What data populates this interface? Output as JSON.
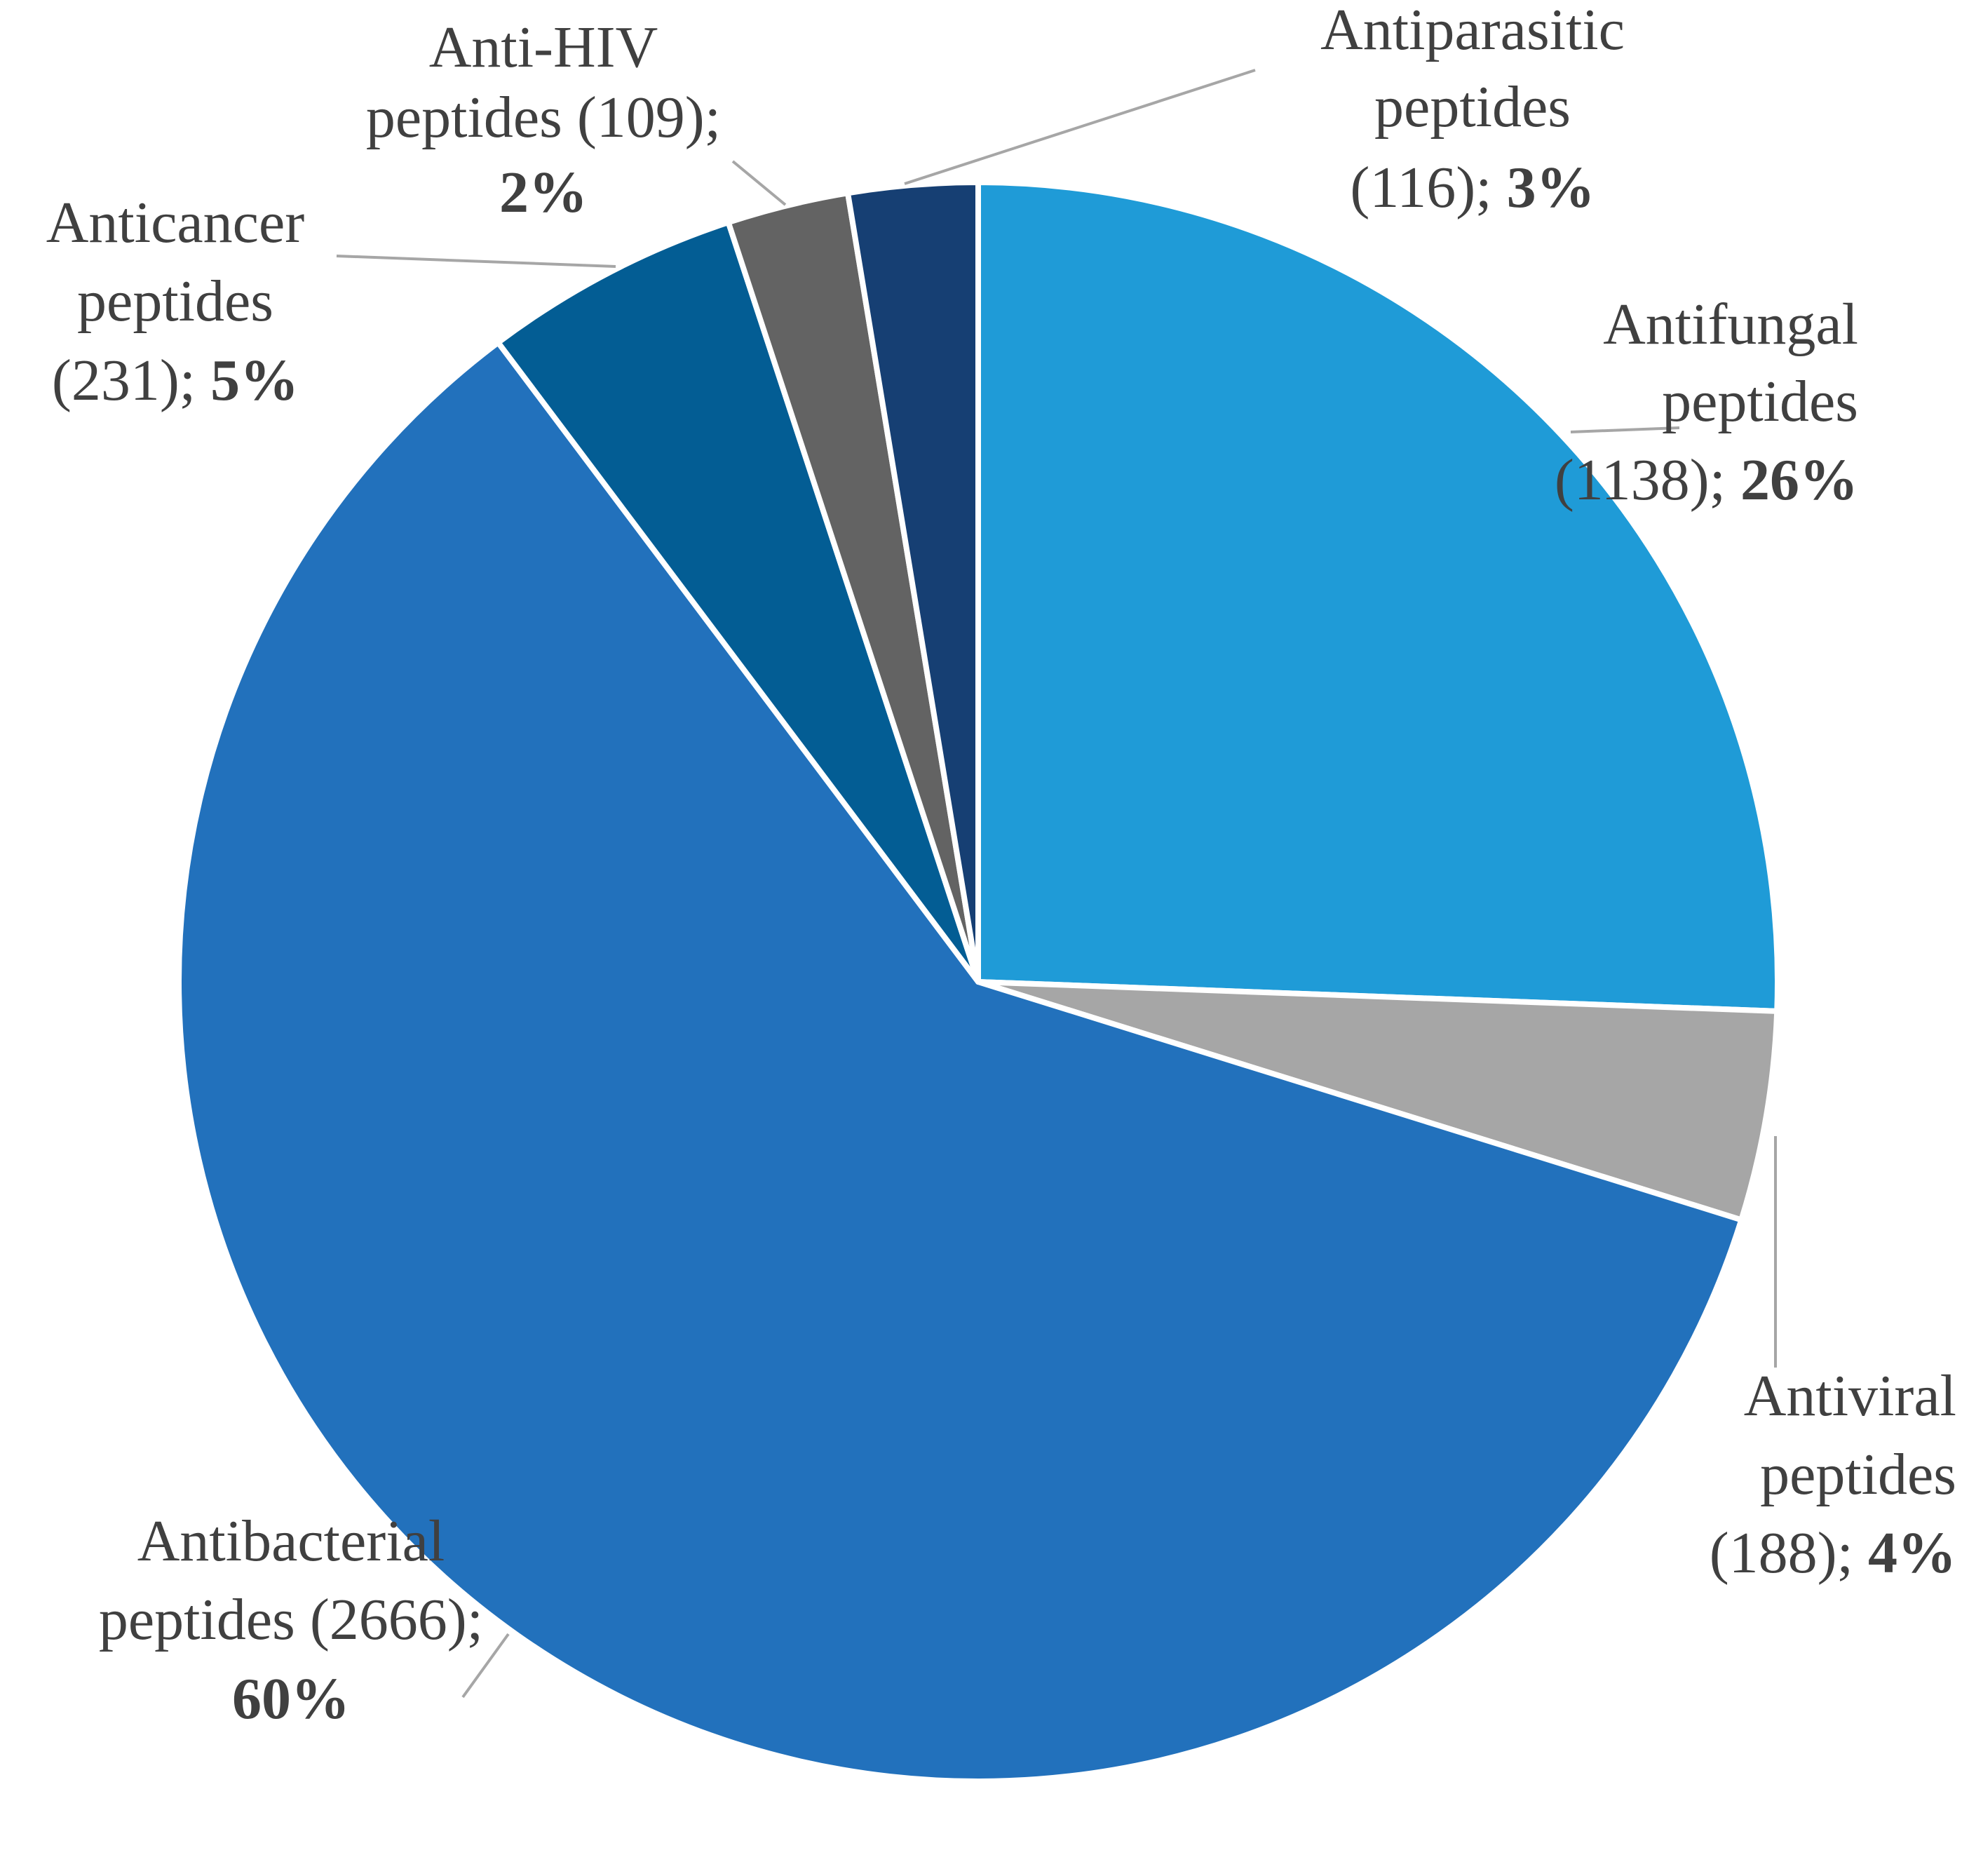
{
  "chart_data": {
    "type": "pie",
    "title": "",
    "start_angle_deg": 0,
    "direction": "clockwise",
    "slices": [
      {
        "label": "Antifungal peptides",
        "count": 1138,
        "percent": 26,
        "color": "#1f9bd7",
        "line1": "Antifungal",
        "line2": "peptides",
        "line3_count": "(1138); ",
        "line3_pct": "26%"
      },
      {
        "label": "Antiviral peptides",
        "count": 188,
        "percent": 4,
        "color": "#a6a6a6",
        "line1": "Antiviral",
        "line2": "peptides",
        "line3_count": "(188); ",
        "line3_pct": "4%"
      },
      {
        "label": "Antibacterial peptides",
        "count": 2666,
        "percent": 60,
        "color": "#2271bc",
        "line1": "Antibacterial",
        "line2": "peptides (2666);",
        "line3_count": "",
        "line3_pct": "60%"
      },
      {
        "label": "Anticancer peptides",
        "count": 231,
        "percent": 5,
        "color": "#035d94",
        "line1": "Anticancer",
        "line2": "peptides",
        "line3_count": "(231); ",
        "line3_pct": "5%"
      },
      {
        "label": "Anti-HIV peptides",
        "count": 109,
        "percent": 2,
        "color": "#636363",
        "line1": "Anti-HIV",
        "line2": "peptides (109);",
        "line3_count": "",
        "line3_pct": "2%"
      },
      {
        "label": "Antiparasitic peptides",
        "count": 116,
        "percent": 3,
        "color": "#163f73",
        "line1": "Antiparasitic",
        "line2": "peptides",
        "line3_count": "(116); ",
        "line3_pct": "3%"
      }
    ]
  }
}
